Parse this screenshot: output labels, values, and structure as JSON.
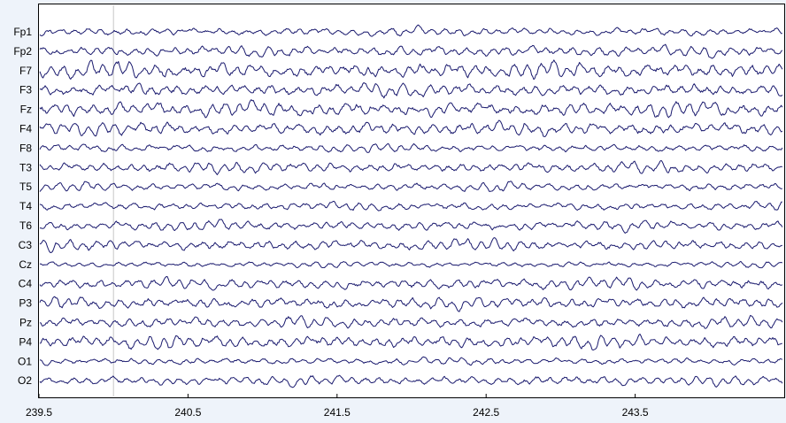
{
  "chart_data": {
    "type": "line",
    "title": "",
    "xlabel": "",
    "ylabel": "",
    "xlim": [
      239.5,
      244.5
    ],
    "x_ticks": [
      "239.5",
      "240.5",
      "241.5",
      "242.5",
      "243.5"
    ],
    "channels": [
      "Fp1",
      "Fp2",
      "F7",
      "F3",
      "Fz",
      "F4",
      "F8",
      "T3",
      "T5",
      "T4",
      "T6",
      "C3",
      "Cz",
      "C4",
      "P3",
      "Pz",
      "P4",
      "O1",
      "O2"
    ],
    "cursor_x": 240.0,
    "grid": false,
    "legend": "none",
    "colors": {
      "trace": "#1a1a6e",
      "cursor": "#c8c8c8",
      "background": "#eef3fa",
      "plot_area": "#ffffff"
    }
  }
}
